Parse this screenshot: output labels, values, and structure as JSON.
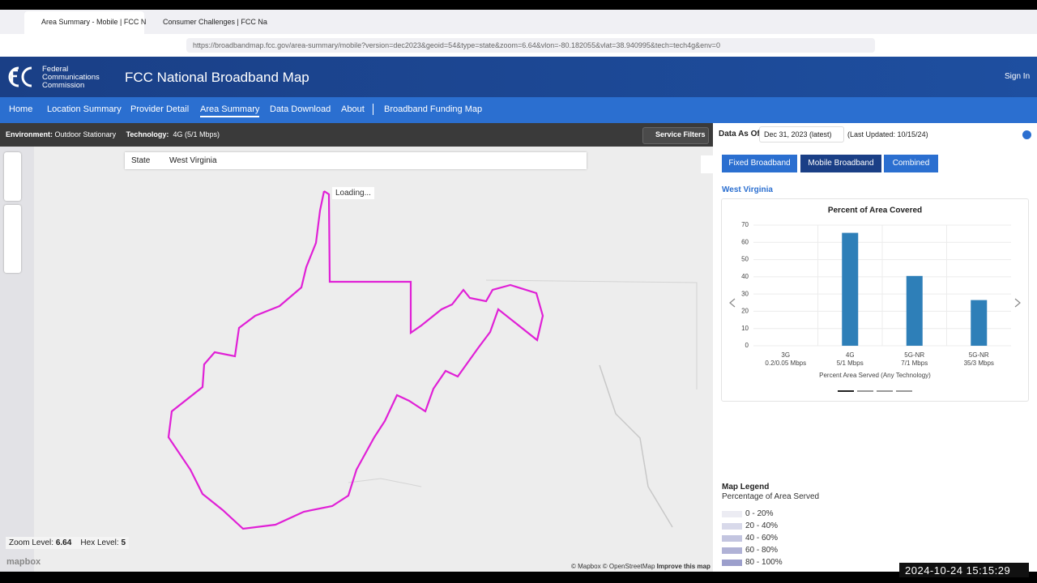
{
  "browser": {
    "tabs": [
      "Area Summary - Mobile | FCC N",
      "Consumer Challenges | FCC Na"
    ],
    "url": "https://broadbandmap.fcc.gov/area-summary/mobile?version=dec2023&geoid=54&type=state&zoom=6.64&vlon=-80.182055&vlat=38.940995&tech=tech4g&env=0"
  },
  "header": {
    "agency_lines": [
      "Federal",
      "Communications",
      "Commission"
    ],
    "title": "FCC National Broadband Map",
    "sign_in": "Sign In"
  },
  "nav": [
    "Home",
    "Location Summary",
    "Provider Detail",
    "Area Summary",
    "Data Download",
    "About",
    "Broadband Funding Map"
  ],
  "filters": {
    "environment_label": "Environment:",
    "environment": "Outdoor Stationary",
    "technology_label": "Technology:",
    "technology": "4G (5/1 Mbps)",
    "service_filters": "Service Filters"
  },
  "map": {
    "geo_type": "State",
    "search": "West Virginia",
    "loading": "Loading...",
    "zoom_label": "Zoom Level:",
    "zoom": 6.64,
    "hex_label": "Hex Level:",
    "hex": 5,
    "logo": "mapbox",
    "attribution": "© Mapbox © OpenStreetMap",
    "improve": "Improve this map"
  },
  "panel": {
    "data_as_of": "Data As Of",
    "date": "Dec 31, 2023 (latest)",
    "updated": "(Last Updated: 10/15/24)",
    "tabs": [
      "Fixed Broadband",
      "Mobile Broadband",
      "Combined"
    ],
    "area": "West Virginia"
  },
  "chart_data": {
    "type": "bar",
    "title": "Percent of Area Covered",
    "categories": [
      "3G",
      "4G",
      "5G-NR",
      "5G-NR"
    ],
    "category_details": [
      "0.2/0.05 Mbps",
      "5/1 Mbps",
      "7/1 Mbps",
      "35/3 Mbps"
    ],
    "x_label": "Percent Area Served (Any Technology)",
    "values": [
      0,
      65.5,
      40.5,
      26.5
    ],
    "color": "#2e7fb8",
    "ylim": [
      0,
      70
    ],
    "yticks": [
      0,
      10,
      20,
      30,
      40,
      50,
      60,
      70
    ],
    "grid": true
  },
  "legend": {
    "title": "Map Legend",
    "subtitle": "Percentage of Area Served",
    "items": [
      {
        "label": "0 - 20%",
        "color": "#ececf3"
      },
      {
        "label": "20 - 40%",
        "color": "#d8d9ea"
      },
      {
        "label": "40 - 60%",
        "color": "#c3c5e0"
      },
      {
        "label": "60 - 80%",
        "color": "#b0b2d6"
      },
      {
        "label": "80 - 100%",
        "color": "#9c9fcc"
      }
    ]
  },
  "timestamp": "2024-10-24 15:15:29"
}
